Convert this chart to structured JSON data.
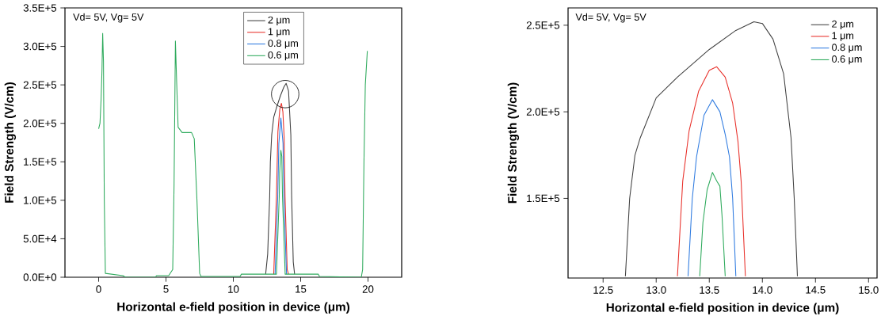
{
  "chart_data": [
    {
      "type": "line",
      "xlabel": "Horizontal e-field position in device (μm)",
      "ylabel": "Field Strength (V/cm)",
      "annotations": [
        "Vd= 5V, Vg= 5V"
      ],
      "legend": "top",
      "xlim": [
        -2.5,
        22.5
      ],
      "ylim": [
        0,
        350000
      ],
      "xticks": [
        0,
        5,
        10,
        15,
        20
      ],
      "yticks": [
        {
          "value": 0,
          "label": "0.0E+0"
        },
        {
          "value": 50000,
          "label": "5.0E+4"
        },
        {
          "value": 100000,
          "label": "1.0E+5"
        },
        {
          "value": 150000,
          "label": "1.5E+5"
        },
        {
          "value": 200000,
          "label": "2.0E+5"
        },
        {
          "value": 250000,
          "label": "2.5E+5"
        },
        {
          "value": 300000,
          "label": "3.0E+5"
        },
        {
          "value": 350000,
          "label": "3.5E+5"
        }
      ],
      "series": [
        {
          "name": "2 μm",
          "color": "#404040",
          "x": [
            12.4,
            12.55,
            12.7,
            12.75,
            12.85,
            13.0,
            13.2,
            13.5,
            13.75,
            13.92,
            14.1,
            14.27,
            14.33,
            14.45,
            14.55
          ],
          "values": [
            4000,
            30000,
            105000,
            150000,
            185000,
            208000,
            220000,
            236000,
            247000,
            252000,
            242000,
            185000,
            105000,
            20000,
            4000
          ]
        },
        {
          "name": "1 μm",
          "color": "#e8302a",
          "x": [
            13.0,
            13.2,
            13.31,
            13.45,
            13.57,
            13.68,
            13.77,
            13.84,
            14.0,
            14.1
          ],
          "values": [
            4000,
            105000,
            189000,
            218000,
            226000,
            215000,
            183000,
            105000,
            10000,
            4000
          ]
        },
        {
          "name": "0.8 μm",
          "color": "#2f7be0",
          "x": [
            13.1,
            13.3,
            13.38,
            13.53,
            13.69,
            13.75,
            13.95
          ],
          "values": [
            4000,
            105000,
            174000,
            207000,
            174000,
            105000,
            4000
          ]
        },
        {
          "name": "0.6 μm",
          "color": "#2eaa5c",
          "x": [
            0,
            0.1,
            0.18,
            0.25,
            0.3,
            0.36,
            0.42,
            0.5,
            1.8,
            2.0,
            4.2,
            4.3,
            5.2,
            5.5,
            5.6,
            5.7,
            5.8,
            5.9,
            6.2,
            6.9,
            7.1,
            7.3,
            7.5,
            7.6,
            10.5,
            10.6,
            13.2,
            13.41,
            13.44,
            13.53,
            13.6,
            13.65,
            13.85,
            16.3,
            16.4,
            19.5,
            19.6,
            19.7,
            19.8,
            19.95
          ],
          "values": [
            193000,
            200000,
            230000,
            270000,
            317000,
            280000,
            100000,
            5000,
            2000,
            0,
            0,
            2000,
            2000,
            10000,
            120000,
            307000,
            250000,
            195000,
            188000,
            188000,
            180000,
            100000,
            5000,
            1000,
            1000,
            4000,
            4000,
            105000,
            136000,
            165000,
            157000,
            105000,
            4000,
            4000,
            1000,
            0,
            10000,
            150000,
            250000,
            294000
          ]
        }
      ]
    },
    {
      "type": "line",
      "xlabel": "Horizontal e-field position in device (μm)",
      "ylabel": "Field Strength (V/cm)",
      "annotations": [
        "Vd= 5V, Vg= 5V"
      ],
      "legend": "top right",
      "xlim": [
        12.17,
        15.08
      ],
      "ylim": [
        104000,
        260000
      ],
      "xticks": [
        {
          "value": 12.5,
          "label": "12.5"
        },
        {
          "value": 13,
          "label": "13.0"
        },
        {
          "value": 13.5,
          "label": "13.5"
        },
        {
          "value": 14,
          "label": "14.0"
        },
        {
          "value": 14.5,
          "label": "14.5"
        },
        {
          "value": 15,
          "label": "15.0"
        }
      ],
      "yticks": [
        {
          "value": 150000,
          "label": "1.5E+5"
        },
        {
          "value": 200000,
          "label": "2.0E+5"
        },
        {
          "value": 250000,
          "label": "2.5E+5"
        }
      ],
      "series": [
        {
          "name": "2 μm",
          "color": "#404040",
          "x": [
            12.71,
            12.75,
            12.8,
            12.85,
            13.0,
            13.2,
            13.5,
            13.75,
            13.92,
            14.0,
            14.1,
            14.2,
            14.27,
            14.3,
            14.33
          ],
          "values": [
            105000,
            150000,
            175000,
            185000,
            208000,
            220000,
            236000,
            247000,
            252000,
            251000,
            242000,
            222000,
            185000,
            150000,
            105000
          ]
        },
        {
          "name": "1 μm",
          "color": "#e8302a",
          "x": [
            13.2,
            13.25,
            13.31,
            13.4,
            13.5,
            13.57,
            13.65,
            13.72,
            13.77,
            13.8,
            13.84
          ],
          "values": [
            105000,
            160000,
            189000,
            212000,
            224000,
            226000,
            220000,
            205000,
            183000,
            160000,
            105000
          ]
        },
        {
          "name": "0.8 μm",
          "color": "#2f7be0",
          "x": [
            13.3,
            13.34,
            13.38,
            13.45,
            13.53,
            13.6,
            13.65,
            13.69,
            13.72,
            13.75
          ],
          "values": [
            105000,
            150000,
            174000,
            198000,
            207000,
            200000,
            187000,
            174000,
            150000,
            105000
          ]
        },
        {
          "name": "0.6 μm",
          "color": "#2eaa5c",
          "x": [
            13.41,
            13.44,
            13.48,
            13.53,
            13.57,
            13.6,
            13.62,
            13.65
          ],
          "values": [
            105000,
            136000,
            155000,
            165000,
            160000,
            157000,
            140000,
            105000
          ]
        }
      ]
    }
  ]
}
